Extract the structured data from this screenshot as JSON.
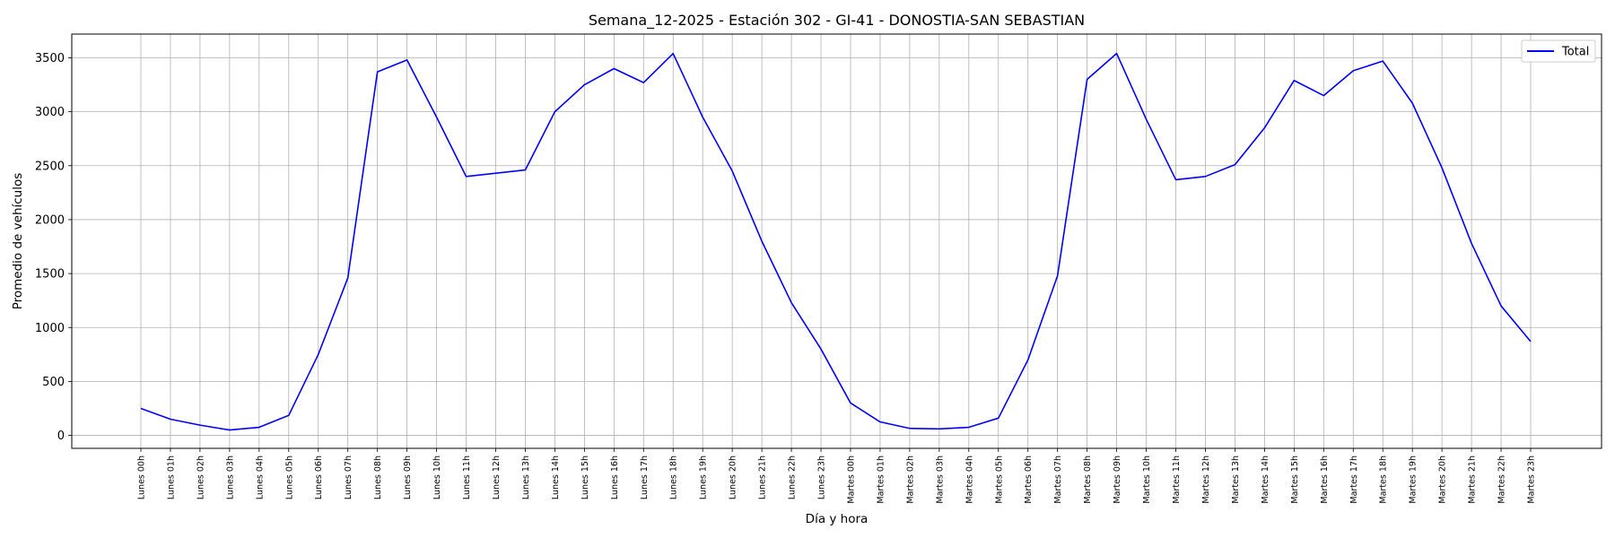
{
  "chart_data": {
    "type": "line",
    "title": "Semana_12-2025 - Estación 302 - GI-41  - DONOSTIA-SAN SEBASTIAN",
    "xlabel": "Día y hora",
    "ylabel": "Promedio de vehículos",
    "ylim": [
      -120,
      3720
    ],
    "yticks": [
      0,
      500,
      1000,
      1500,
      2000,
      2500,
      3000,
      3500
    ],
    "grid": true,
    "legend_position": "top-right",
    "categories": [
      "Lunes 00h",
      "Lunes 01h",
      "Lunes 02h",
      "Lunes 03h",
      "Lunes 04h",
      "Lunes 05h",
      "Lunes 06h",
      "Lunes 07h",
      "Lunes 08h",
      "Lunes 09h",
      "Lunes 10h",
      "Lunes 11h",
      "Lunes 12h",
      "Lunes 13h",
      "Lunes 14h",
      "Lunes 15h",
      "Lunes 16h",
      "Lunes 17h",
      "Lunes 18h",
      "Lunes 19h",
      "Lunes 20h",
      "Lunes 21h",
      "Lunes 22h",
      "Lunes 23h",
      "Martes 00h",
      "Martes 01h",
      "Martes 02h",
      "Martes 03h",
      "Martes 04h",
      "Martes 05h",
      "Martes 06h",
      "Martes 07h",
      "Martes 08h",
      "Martes 09h",
      "Martes 10h",
      "Martes 11h",
      "Martes 12h",
      "Martes 13h",
      "Martes 14h",
      "Martes 15h",
      "Martes 16h",
      "Martes 17h",
      "Martes 18h",
      "Martes 19h",
      "Martes 20h",
      "Martes 21h",
      "Martes 22h",
      "Martes 23h"
    ],
    "series": [
      {
        "name": "Total",
        "color": "#0000ff",
        "values": [
          250,
          150,
          95,
          50,
          75,
          185,
          750,
          1460,
          3370,
          3480,
          2950,
          2400,
          2430,
          2460,
          3000,
          3250,
          3400,
          3270,
          3540,
          2950,
          2450,
          1800,
          1230,
          800,
          300,
          125,
          65,
          60,
          75,
          160,
          700,
          1480,
          3300,
          3540,
          2930,
          2370,
          2400,
          2510,
          2850,
          3290,
          3150,
          3380,
          3470,
          3080,
          2480,
          1780,
          1200,
          870
        ]
      }
    ]
  }
}
